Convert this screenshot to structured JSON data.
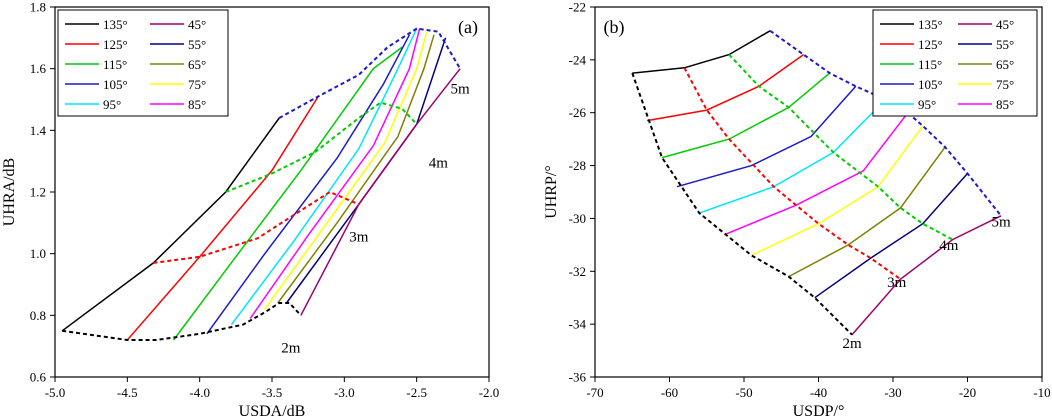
{
  "colors": {
    "135": "#000000",
    "125": "#ff0000",
    "115": "#00cc00",
    "105": "#1a1acc",
    "95": "#00e5ff",
    "85": "#ff00ff",
    "75": "#ffff00",
    "65": "#808000",
    "55": "#000080",
    "45": "#a0006e"
  },
  "chart_data": [
    {
      "type": "line",
      "panel_label": "(a)",
      "xlabel": "USDA/dB",
      "ylabel": "UHRA/dB",
      "xlim": [
        -5.0,
        -2.0
      ],
      "ylim": [
        0.6,
        1.8
      ],
      "xticks": [
        -5.0,
        -4.5,
        -4.0,
        -3.5,
        -3.0,
        -2.5,
        -2.0
      ],
      "yticks": [
        0.6,
        0.8,
        1.0,
        1.2,
        1.4,
        1.6,
        1.8
      ],
      "xtick_labels": [
        "-5.0",
        "-4.5",
        "-4.0",
        "-3.5",
        "-3.0",
        "-2.5",
        "-2.0"
      ],
      "ytick_labels": [
        "0.6",
        "0.8",
        "1.0",
        "1.2",
        "1.4",
        "1.6",
        "1.8"
      ],
      "legend": {
        "placement": "top-left",
        "entries": [
          "135°",
          "125°",
          "115°",
          "105°",
          "95°",
          "45°",
          "55°",
          "65°",
          "75°",
          "85°"
        ]
      },
      "annotations": [
        {
          "text": "5m",
          "x": -2.2,
          "y": 1.52
        },
        {
          "text": "4m",
          "x": -2.35,
          "y": 1.28
        },
        {
          "text": "3m",
          "x": -2.9,
          "y": 1.04
        },
        {
          "text": "2m",
          "x": -3.37,
          "y": 0.68
        }
      ],
      "series": [
        {
          "name": "135°",
          "angle": "135",
          "x": [
            -4.95,
            -4.32,
            -3.82,
            -3.45
          ],
          "y": [
            0.75,
            0.97,
            1.2,
            1.44
          ]
        },
        {
          "name": "125°",
          "angle": "125",
          "x": [
            -4.5,
            -4.0,
            -3.5,
            -3.18
          ],
          "y": [
            0.72,
            0.99,
            1.27,
            1.51
          ]
        },
        {
          "name": "115°",
          "angle": "115",
          "x": [
            -4.18,
            -3.75,
            -3.3,
            -2.8,
            -2.6
          ],
          "y": [
            0.72,
            0.99,
            1.27,
            1.6,
            1.67
          ]
        },
        {
          "name": "105°",
          "angle": "105",
          "x": [
            -3.95,
            -3.55,
            -3.05,
            -2.73,
            -2.55
          ],
          "y": [
            0.74,
            1.0,
            1.31,
            1.55,
            1.71
          ]
        },
        {
          "name": "95°",
          "angle": "95",
          "x": [
            -3.78,
            -3.35,
            -2.9,
            -2.65,
            -2.5
          ],
          "y": [
            0.77,
            1.04,
            1.34,
            1.58,
            1.73
          ]
        },
        {
          "name": "85°",
          "angle": "85",
          "x": [
            -3.65,
            -3.25,
            -2.8,
            -2.55,
            -2.48
          ],
          "y": [
            0.79,
            1.06,
            1.35,
            1.6,
            1.73
          ]
        },
        {
          "name": "75°",
          "angle": "75",
          "x": [
            -3.55,
            -3.15,
            -2.72,
            -2.5,
            -2.43
          ],
          "y": [
            0.82,
            1.08,
            1.36,
            1.6,
            1.72
          ]
        },
        {
          "name": "65°",
          "angle": "65",
          "x": [
            -3.46,
            -3.05,
            -2.63,
            -2.45,
            -2.38
          ],
          "y": [
            0.84,
            1.1,
            1.38,
            1.6,
            1.71
          ]
        },
        {
          "name": "55°",
          "angle": "55",
          "x": [
            -3.4,
            -2.9,
            -2.5,
            -2.3
          ],
          "y": [
            0.84,
            1.16,
            1.42,
            1.7
          ]
        },
        {
          "name": "45°",
          "angle": "45",
          "x": [
            -3.3,
            -2.9,
            -2.5,
            -2.2
          ],
          "y": [
            0.8,
            1.16,
            1.42,
            1.6
          ]
        }
      ],
      "distance_curves": [
        {
          "name": "2m",
          "angle": "135",
          "x": [
            -4.95,
            -4.5,
            -4.3,
            -4.0,
            -3.7,
            -3.55,
            -3.45,
            -3.38,
            -3.3
          ],
          "y": [
            0.75,
            0.72,
            0.72,
            0.74,
            0.77,
            0.81,
            0.84,
            0.84,
            0.8
          ]
        },
        {
          "name": "3m",
          "angle": "125",
          "x": [
            -4.32,
            -4.0,
            -3.6,
            -3.3,
            -3.1,
            -2.9
          ],
          "y": [
            0.97,
            0.99,
            1.05,
            1.14,
            1.2,
            1.16
          ]
        },
        {
          "name": "4m",
          "angle": "115",
          "x": [
            -3.82,
            -3.5,
            -3.2,
            -2.9,
            -2.75,
            -2.6,
            -2.5
          ],
          "y": [
            1.2,
            1.26,
            1.33,
            1.44,
            1.49,
            1.47,
            1.42
          ]
        },
        {
          "name": "5m",
          "angle": "105",
          "x": [
            -3.45,
            -3.18,
            -2.9,
            -2.7,
            -2.5,
            -2.35,
            -2.2
          ],
          "y": [
            1.44,
            1.51,
            1.58,
            1.67,
            1.73,
            1.72,
            1.6
          ]
        }
      ]
    },
    {
      "type": "line",
      "panel_label": "(b)",
      "xlabel": "USDP/°",
      "ylabel": "UHRP/°",
      "xlim": [
        -70,
        -10
      ],
      "ylim": [
        -36,
        -22
      ],
      "xticks": [
        -70,
        -60,
        -50,
        -40,
        -30,
        -20,
        -10
      ],
      "yticks": [
        -36,
        -34,
        -32,
        -30,
        -28,
        -26,
        -24,
        -22
      ],
      "xtick_labels": [
        "-70",
        "-60",
        "-50",
        "-40",
        "-30",
        "-20",
        "-10"
      ],
      "ytick_labels": [
        "-36",
        "-34",
        "-32",
        "-30",
        "-28",
        "-26",
        "-24",
        "-22"
      ],
      "legend": {
        "placement": "top-right",
        "entries": [
          "135°",
          "125°",
          "115°",
          "105°",
          "95°",
          "45°",
          "55°",
          "65°",
          "75°",
          "85°"
        ]
      },
      "annotations": [
        {
          "text": "5m",
          "x": -15.5,
          "y": -30.3
        },
        {
          "text": "4m",
          "x": -22.5,
          "y": -31.2
        },
        {
          "text": "3m",
          "x": -29.5,
          "y": -32.6
        },
        {
          "text": "2m",
          "x": -35.5,
          "y": -34.9
        }
      ],
      "series": [
        {
          "name": "135°",
          "angle": "135",
          "x": [
            -65,
            -58,
            -52,
            -46.5
          ],
          "y": [
            -24.5,
            -24.3,
            -23.8,
            -22.9
          ]
        },
        {
          "name": "125°",
          "angle": "125",
          "x": [
            -63,
            -55,
            -48,
            -42
          ],
          "y": [
            -26.3,
            -25.9,
            -25.0,
            -23.8
          ]
        },
        {
          "name": "115°",
          "angle": "115",
          "x": [
            -61,
            -52,
            -44,
            -38.5
          ],
          "y": [
            -27.7,
            -27.0,
            -25.8,
            -24.5
          ]
        },
        {
          "name": "105°",
          "angle": "105",
          "x": [
            -59,
            -49,
            -41,
            -35
          ],
          "y": [
            -28.8,
            -28.0,
            -26.9,
            -25.0
          ]
        },
        {
          "name": "95°",
          "angle": "95",
          "x": [
            -56,
            -46,
            -38,
            -31
          ],
          "y": [
            -29.8,
            -28.8,
            -27.5,
            -25.5
          ]
        },
        {
          "name": "85°",
          "angle": "85",
          "x": [
            -52.5,
            -43,
            -34,
            -28
          ],
          "y": [
            -30.6,
            -29.5,
            -28.2,
            -26.0
          ]
        },
        {
          "name": "75°",
          "angle": "75",
          "x": [
            -49,
            -40,
            -32,
            -26
          ],
          "y": [
            -31.4,
            -30.2,
            -28.8,
            -26.5
          ]
        },
        {
          "name": "65°",
          "angle": "65",
          "x": [
            -44,
            -36,
            -29,
            -23
          ],
          "y": [
            -32.2,
            -31.0,
            -29.6,
            -27.3
          ]
        },
        {
          "name": "55°",
          "angle": "55",
          "x": [
            -40.5,
            -33,
            -26,
            -20
          ],
          "y": [
            -33.0,
            -31.5,
            -30.2,
            -28.3
          ]
        },
        {
          "name": "45°",
          "angle": "45",
          "x": [
            -35.5,
            -29,
            -22,
            -15.5
          ],
          "y": [
            -34.4,
            -32.3,
            -30.8,
            -29.9
          ]
        }
      ],
      "distance_curves": [
        {
          "name": "2m",
          "angle": "135",
          "x": [
            -65,
            -61,
            -56,
            -49,
            -44,
            -40.5,
            -35.5
          ],
          "y": [
            -24.5,
            -27.7,
            -29.8,
            -31.4,
            -32.2,
            -33.0,
            -34.4
          ]
        },
        {
          "name": "3m",
          "angle": "125",
          "x": [
            -58,
            -55,
            -52,
            -46,
            -40,
            -36,
            -33,
            -29
          ],
          "y": [
            -24.3,
            -25.9,
            -27.0,
            -28.8,
            -30.2,
            -31.0,
            -31.5,
            -32.3
          ]
        },
        {
          "name": "4m",
          "angle": "115",
          "x": [
            -52,
            -48,
            -44,
            -38,
            -32,
            -29,
            -26,
            -22
          ],
          "y": [
            -23.8,
            -25.0,
            -25.8,
            -27.5,
            -28.8,
            -29.6,
            -30.2,
            -30.8
          ]
        },
        {
          "name": "5m",
          "angle": "105",
          "x": [
            -46.5,
            -42,
            -38.5,
            -35,
            -31,
            -28,
            -26,
            -23,
            -20,
            -15.5
          ],
          "y": [
            -22.9,
            -23.8,
            -24.5,
            -25.0,
            -25.5,
            -26.0,
            -26.5,
            -27.3,
            -28.3,
            -29.9
          ]
        }
      ]
    }
  ]
}
